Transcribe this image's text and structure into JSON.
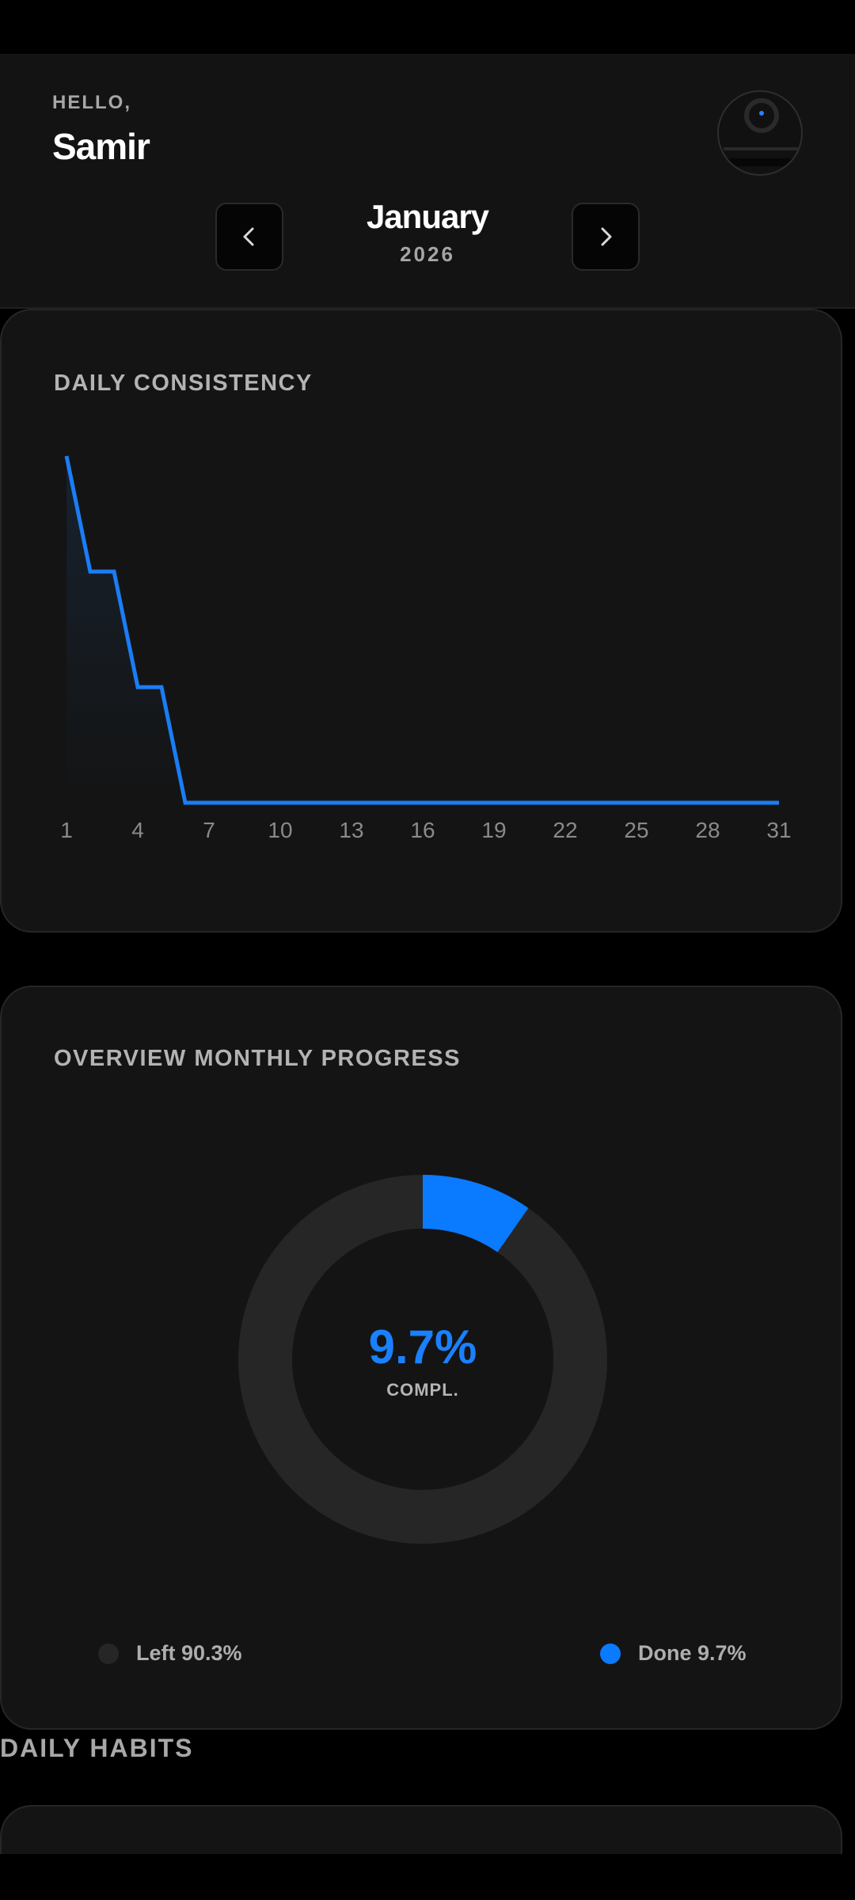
{
  "header": {
    "greeting": "HELLO,",
    "user_name": "Samir",
    "month": "January",
    "year": "2026",
    "prev_icon": "chevron-left-icon",
    "next_icon": "chevron-right-icon"
  },
  "daily_consistency": {
    "title": "DAILY CONSISTENCY",
    "chart_data": {
      "type": "line",
      "x": [
        1,
        2,
        3,
        4,
        5,
        6,
        7,
        8,
        9,
        10,
        11,
        12,
        13,
        14,
        15,
        16,
        17,
        18,
        19,
        20,
        21,
        22,
        23,
        24,
        25,
        26,
        27,
        28,
        29,
        30,
        31
      ],
      "series": [
        {
          "values": [
            3,
            2,
            2,
            1,
            1,
            0,
            0,
            0,
            0,
            0,
            0,
            0,
            0,
            0,
            0,
            0,
            0,
            0,
            0,
            0,
            0,
            0,
            0,
            0,
            0,
            0,
            0,
            0,
            0,
            0,
            0
          ]
        }
      ],
      "xticks": [
        "1",
        "4",
        "7",
        "10",
        "13",
        "16",
        "19",
        "22",
        "25",
        "28",
        "31"
      ],
      "ylim": [
        0,
        3
      ],
      "grid": false,
      "line_color": "#1a7df5"
    }
  },
  "overview": {
    "title": "OVERVIEW MONTHLY PROGRESS",
    "center_value": "9.7%",
    "center_label": "COMPL.",
    "chart_data": {
      "type": "pie",
      "categories": [
        "Done",
        "Left"
      ],
      "values": [
        9.7,
        90.3
      ],
      "colors": [
        "#0a7aff",
        "#262626"
      ]
    },
    "legend": [
      {
        "label": "Left 90.3%",
        "color": "#262626"
      },
      {
        "label": "Done 9.7%",
        "color": "#0a7aff"
      }
    ]
  },
  "habits": {
    "title": "DAILY HABITS"
  }
}
